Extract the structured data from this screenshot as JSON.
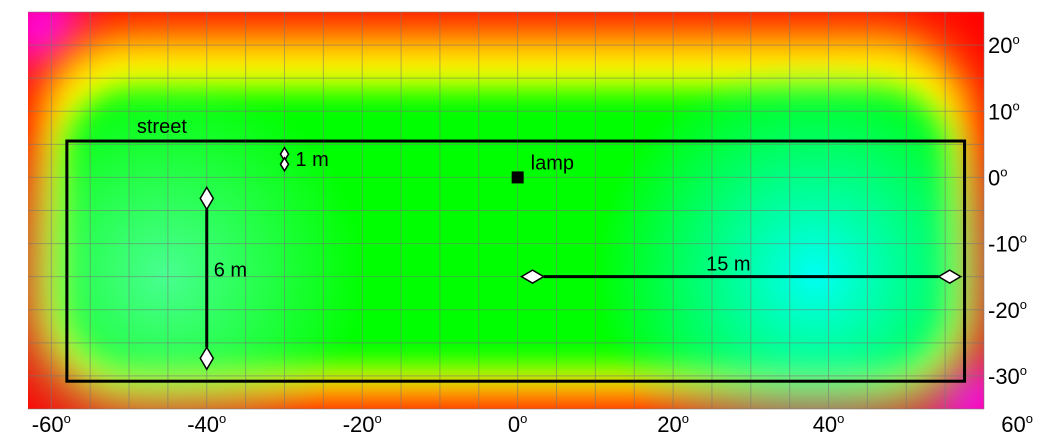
{
  "chart_data": {
    "type": "heatmap",
    "x_ticks": [
      {
        "value": -60,
        "label": "-60",
        "deg": "o"
      },
      {
        "value": -40,
        "label": "-40",
        "deg": "o"
      },
      {
        "value": -20,
        "label": "-20",
        "deg": "o"
      },
      {
        "value": 0,
        "label": "0",
        "deg": "o"
      },
      {
        "value": 20,
        "label": "20",
        "deg": "o"
      },
      {
        "value": 40,
        "label": "40",
        "deg": "o"
      },
      {
        "value": 60,
        "label": "60",
        "deg": "o"
      }
    ],
    "y_ticks": [
      {
        "value": 20,
        "label": "20",
        "deg": "o"
      },
      {
        "value": 10,
        "label": "10",
        "deg": "o"
      },
      {
        "value": 0,
        "label": "0",
        "deg": "o"
      },
      {
        "value": -10,
        "label": "-10",
        "deg": "o"
      },
      {
        "value": -20,
        "label": "-20",
        "deg": "o"
      },
      {
        "value": -30,
        "label": "-30",
        "deg": "o"
      }
    ],
    "xlim": [
      -63,
      60
    ],
    "ylim": [
      -35,
      25
    ],
    "grid": true,
    "colormap": [
      "#ff00ff",
      "#ff0000",
      "#ffff00",
      "#00ff00",
      "#00ffff"
    ],
    "street": {
      "label": "street",
      "x": [
        -58,
        57.5
      ],
      "y": [
        -30.8,
        5.5
      ]
    },
    "lamp": {
      "label": "lamp",
      "x": 0,
      "y": 0
    },
    "dimensions": [
      {
        "label": "1 m",
        "x": -30,
        "y": [
          1,
          4.5
        ]
      },
      {
        "label": "6 m",
        "x": -40,
        "y": [
          -1.5,
          -29
        ]
      },
      {
        "label": "15 m",
        "y": -15,
        "x": [
          0.5,
          57
        ]
      }
    ]
  }
}
